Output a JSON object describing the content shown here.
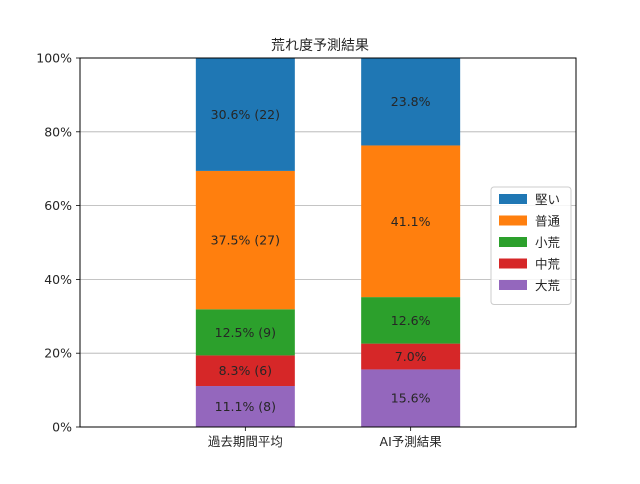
{
  "chart_data": {
    "type": "bar",
    "stacked": true,
    "title": "荒れ度予測結果",
    "xlabel": "",
    "ylabel": "",
    "ylim": [
      0,
      100
    ],
    "yticks": [
      "0%",
      "20%",
      "40%",
      "60%",
      "80%",
      "100%"
    ],
    "categories": [
      "過去期間平均",
      "AI予測結果"
    ],
    "grid": "horizontal",
    "legend_position": "right",
    "series": [
      {
        "name": "大荒",
        "color": "#9467bd",
        "values": [
          11.1,
          15.6
        ],
        "labels": [
          "11.1% (8)",
          "15.6%"
        ]
      },
      {
        "name": "中荒",
        "color": "#d62728",
        "values": [
          8.3,
          7.0
        ],
        "labels": [
          "8.3% (6)",
          "7.0%"
        ]
      },
      {
        "name": "小荒",
        "color": "#2ca02c",
        "values": [
          12.5,
          12.6
        ],
        "labels": [
          "12.5% (9)",
          "12.6%"
        ]
      },
      {
        "name": "普通",
        "color": "#ff7f0e",
        "values": [
          37.5,
          41.1
        ],
        "labels": [
          "37.5% (27)",
          "41.1%"
        ]
      },
      {
        "name": "堅い",
        "color": "#1f77b4",
        "values": [
          30.6,
          23.8
        ],
        "labels": [
          "30.6% (22)",
          "23.8%"
        ]
      }
    ],
    "legend_order": [
      "堅い",
      "普通",
      "小荒",
      "中荒",
      "大荒"
    ]
  }
}
